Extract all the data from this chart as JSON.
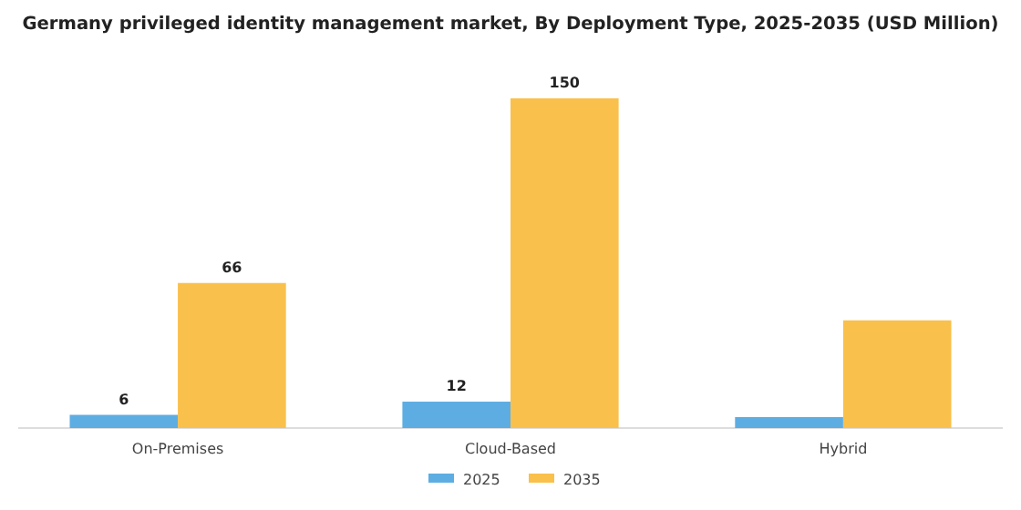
{
  "chart_data": {
    "type": "bar",
    "title": "Germany privileged identity management market, By Deployment Type, 2025-2035 (USD Million)",
    "categories": [
      "On-Premises",
      "Cloud-Based",
      "Hybrid"
    ],
    "series": [
      {
        "name": "2025",
        "color": "#5dade2",
        "values": [
          6,
          12,
          5
        ],
        "value_labels": [
          "6",
          "12",
          null
        ]
      },
      {
        "name": "2035",
        "color": "#f9c04b",
        "values": [
          66,
          150,
          49
        ],
        "value_labels": [
          "66",
          "150",
          null
        ]
      }
    ],
    "legend": "bottom"
  }
}
